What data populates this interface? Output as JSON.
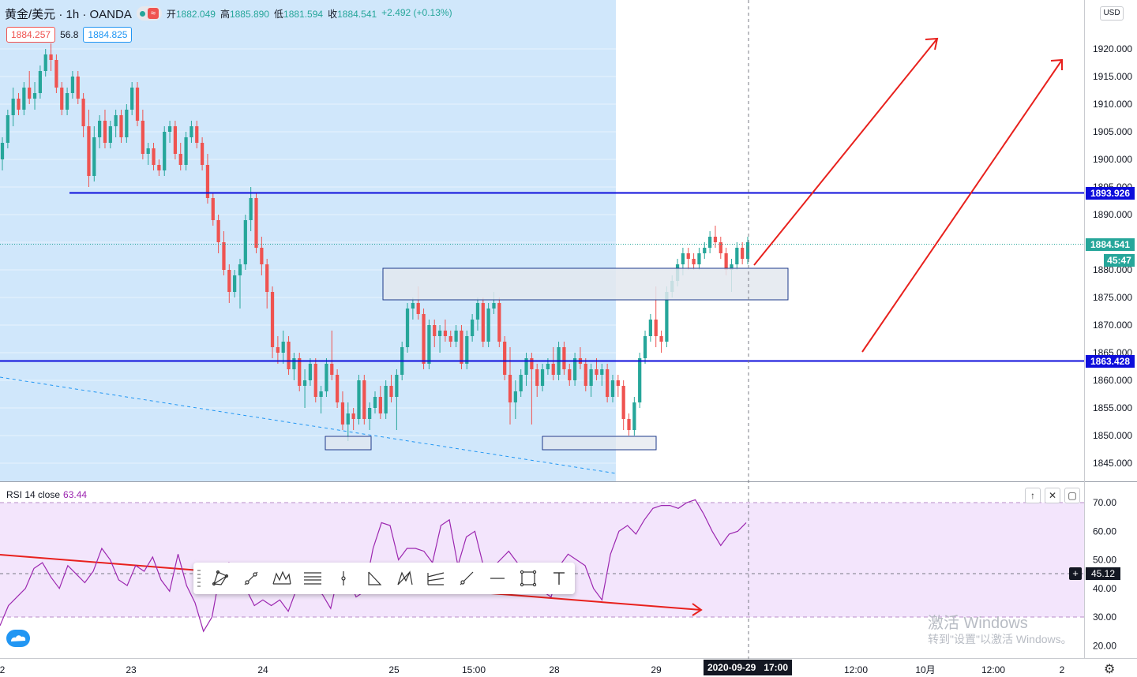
{
  "header": {
    "symbol": "黄金/美元 · 1h · OANDA",
    "wave_glyph": "≈",
    "ohlc": {
      "open_label": "开",
      "open": "1882.049",
      "high_label": "高",
      "high": "1885.890",
      "low_label": "低",
      "low": "1881.594",
      "close_label": "收",
      "close": "1884.541",
      "change": "+2.492 (+0.13%)"
    },
    "bid": "1884.257",
    "spread": "56.8",
    "ask": "1884.825"
  },
  "colors": {
    "up": "#26a69a",
    "down": "#ef5350",
    "level_line": "#0d0ddb",
    "shade": "#d0e7fb",
    "rsi_line": "#9c27b0",
    "rsi_band": "#f3e5fc",
    "arrow": "#e8211d",
    "zone_fill": "#e3e7ee",
    "zone_border": "#1e3a8a"
  },
  "price_axis": {
    "currency": "USD",
    "ticks": [
      "1920.000",
      "1915.000",
      "1910.000",
      "1905.000",
      "1900.000",
      "1895.000",
      "1890.000",
      "1885.000",
      "1880.000",
      "1875.000",
      "1870.000",
      "1865.000",
      "1860.000",
      "1855.000",
      "1850.000",
      "1845.000"
    ],
    "labels": [
      {
        "text": "1893.926",
        "color": "#0d0ddb"
      },
      {
        "text": "1884.541",
        "color": "#26a69a"
      },
      {
        "text": "45:47",
        "color": "#26a69a"
      },
      {
        "text": "1863.428",
        "color": "#0d0ddb"
      }
    ]
  },
  "time_axis": {
    "labels": [
      "2",
      "23",
      "24",
      "25",
      "15:00",
      "28",
      "29",
      "12:00",
      "10月",
      "12:00",
      "2"
    ],
    "crosshair_label": "2020-09-29   17:00"
  },
  "rsi": {
    "title": "RSI 14 close",
    "value": "63.44",
    "ticks": [
      "70.00",
      "60.00",
      "50.00",
      "40.00",
      "30.00",
      "20.00"
    ],
    "crosshair_value": "45.12",
    "crosshair_plus": "+",
    "buttons": [
      "↑",
      "✕",
      "▢"
    ]
  },
  "toolbar_icons": [
    "triangle-pattern-icon",
    "trend-line-icon",
    "elliott-wave-icon",
    "fib-levels-icon",
    "vertical-line-icon",
    "abcd-pattern-icon",
    "xabcd-pattern-icon",
    "pitchfork-icon",
    "ray-line-icon",
    "horizontal-ray-icon",
    "rectangle-icon",
    "text-icon"
  ],
  "watermark": {
    "line1": "激活 Windows",
    "line2": "转到\"设置\"以激活 Windows。"
  },
  "chart_data": {
    "type": "candlestick",
    "title": "黄金/美元 · 1h · OANDA",
    "ylim": [
      1841,
      1925
    ],
    "horizontal_levels": [
      1893.926,
      1863.428
    ],
    "current_price": 1884.541,
    "candles": [
      {
        "o": 1900,
        "h": 1904,
        "l": 1898,
        "c": 1903
      },
      {
        "o": 1903,
        "h": 1909,
        "l": 1902,
        "c": 1908
      },
      {
        "o": 1908,
        "h": 1913,
        "l": 1906,
        "c": 1911
      },
      {
        "o": 1911,
        "h": 1912,
        "l": 1908,
        "c": 1909
      },
      {
        "o": 1909,
        "h": 1914,
        "l": 1908,
        "c": 1913
      },
      {
        "o": 1913,
        "h": 1916,
        "l": 1910,
        "c": 1911
      },
      {
        "o": 1911,
        "h": 1914,
        "l": 1909,
        "c": 1912
      },
      {
        "o": 1912,
        "h": 1917,
        "l": 1911,
        "c": 1916
      },
      {
        "o": 1916,
        "h": 1920,
        "l": 1915,
        "c": 1919
      },
      {
        "o": 1919,
        "h": 1921,
        "l": 1916,
        "c": 1918
      },
      {
        "o": 1918,
        "h": 1919,
        "l": 1912,
        "c": 1913
      },
      {
        "o": 1913,
        "h": 1914,
        "l": 1908,
        "c": 1909
      },
      {
        "o": 1909,
        "h": 1913,
        "l": 1908,
        "c": 1912
      },
      {
        "o": 1912,
        "h": 1916,
        "l": 1911,
        "c": 1915
      },
      {
        "o": 1915,
        "h": 1916,
        "l": 1910,
        "c": 1911
      },
      {
        "o": 1911,
        "h": 1912,
        "l": 1904,
        "c": 1906
      },
      {
        "o": 1906,
        "h": 1909,
        "l": 1895,
        "c": 1897
      },
      {
        "o": 1897,
        "h": 1906,
        "l": 1896,
        "c": 1904
      },
      {
        "o": 1904,
        "h": 1908,
        "l": 1902,
        "c": 1907
      },
      {
        "o": 1907,
        "h": 1909,
        "l": 1902,
        "c": 1903
      },
      {
        "o": 1903,
        "h": 1907,
        "l": 1902,
        "c": 1906
      },
      {
        "o": 1906,
        "h": 1909,
        "l": 1904,
        "c": 1908
      },
      {
        "o": 1908,
        "h": 1909,
        "l": 1903,
        "c": 1904
      },
      {
        "o": 1904,
        "h": 1910,
        "l": 1903,
        "c": 1909
      },
      {
        "o": 1909,
        "h": 1914,
        "l": 1908,
        "c": 1913
      },
      {
        "o": 1913,
        "h": 1914,
        "l": 1906,
        "c": 1907
      },
      {
        "o": 1907,
        "h": 1909,
        "l": 1900,
        "c": 1901
      },
      {
        "o": 1901,
        "h": 1903,
        "l": 1899,
        "c": 1902
      },
      {
        "o": 1902,
        "h": 1903,
        "l": 1898,
        "c": 1899
      },
      {
        "o": 1899,
        "h": 1900,
        "l": 1897,
        "c": 1898
      },
      {
        "o": 1898,
        "h": 1906,
        "l": 1897,
        "c": 1905
      },
      {
        "o": 1905,
        "h": 1907,
        "l": 1903,
        "c": 1906
      },
      {
        "o": 1906,
        "h": 1907,
        "l": 1900,
        "c": 1901
      },
      {
        "o": 1901,
        "h": 1903,
        "l": 1898,
        "c": 1899
      },
      {
        "o": 1899,
        "h": 1905,
        "l": 1898,
        "c": 1904
      },
      {
        "o": 1904,
        "h": 1907,
        "l": 1903,
        "c": 1906
      },
      {
        "o": 1906,
        "h": 1907,
        "l": 1902,
        "c": 1903
      },
      {
        "o": 1903,
        "h": 1904,
        "l": 1898,
        "c": 1899
      },
      {
        "o": 1899,
        "h": 1901,
        "l": 1892,
        "c": 1893
      },
      {
        "o": 1893,
        "h": 1894,
        "l": 1888,
        "c": 1889
      },
      {
        "o": 1889,
        "h": 1890,
        "l": 1883,
        "c": 1885
      },
      {
        "o": 1885,
        "h": 1887,
        "l": 1879,
        "c": 1880
      },
      {
        "o": 1880,
        "h": 1881,
        "l": 1874,
        "c": 1876
      },
      {
        "o": 1876,
        "h": 1880,
        "l": 1875,
        "c": 1879
      },
      {
        "o": 1879,
        "h": 1882,
        "l": 1873,
        "c": 1881
      },
      {
        "o": 1881,
        "h": 1890,
        "l": 1880,
        "c": 1889
      },
      {
        "o": 1889,
        "h": 1895,
        "l": 1887,
        "c": 1893
      },
      {
        "o": 1893,
        "h": 1894,
        "l": 1883,
        "c": 1884
      },
      {
        "o": 1884,
        "h": 1886,
        "l": 1879,
        "c": 1881
      },
      {
        "o": 1881,
        "h": 1882,
        "l": 1873,
        "c": 1876
      },
      {
        "o": 1876,
        "h": 1877,
        "l": 1864,
        "c": 1866
      },
      {
        "o": 1866,
        "h": 1868,
        "l": 1863,
        "c": 1865
      },
      {
        "o": 1865,
        "h": 1869,
        "l": 1863,
        "c": 1867
      },
      {
        "o": 1867,
        "h": 1868,
        "l": 1861,
        "c": 1862
      },
      {
        "o": 1862,
        "h": 1865,
        "l": 1860,
        "c": 1864
      },
      {
        "o": 1864,
        "h": 1865,
        "l": 1858,
        "c": 1859
      },
      {
        "o": 1859,
        "h": 1862,
        "l": 1855,
        "c": 1860
      },
      {
        "o": 1860,
        "h": 1864,
        "l": 1859,
        "c": 1863
      },
      {
        "o": 1863,
        "h": 1864,
        "l": 1856,
        "c": 1857
      },
      {
        "o": 1857,
        "h": 1859,
        "l": 1854,
        "c": 1858
      },
      {
        "o": 1858,
        "h": 1864,
        "l": 1857,
        "c": 1863
      },
      {
        "o": 1863,
        "h": 1869,
        "l": 1860,
        "c": 1861
      },
      {
        "o": 1861,
        "h": 1862,
        "l": 1855,
        "c": 1856
      },
      {
        "o": 1856,
        "h": 1858,
        "l": 1851,
        "c": 1852
      },
      {
        "o": 1852,
        "h": 1856,
        "l": 1849,
        "c": 1854
      },
      {
        "o": 1854,
        "h": 1855,
        "l": 1851,
        "c": 1853
      },
      {
        "o": 1853,
        "h": 1861,
        "l": 1852,
        "c": 1860
      },
      {
        "o": 1860,
        "h": 1861,
        "l": 1852,
        "c": 1853
      },
      {
        "o": 1853,
        "h": 1856,
        "l": 1851,
        "c": 1855
      },
      {
        "o": 1855,
        "h": 1858,
        "l": 1854,
        "c": 1857
      },
      {
        "o": 1857,
        "h": 1859,
        "l": 1853,
        "c": 1854
      },
      {
        "o": 1854,
        "h": 1860,
        "l": 1853,
        "c": 1859
      },
      {
        "o": 1859,
        "h": 1861,
        "l": 1856,
        "c": 1857
      },
      {
        "o": 1857,
        "h": 1862,
        "l": 1851,
        "c": 1861
      },
      {
        "o": 1861,
        "h": 1867,
        "l": 1860,
        "c": 1866
      },
      {
        "o": 1866,
        "h": 1874,
        "l": 1865,
        "c": 1873
      },
      {
        "o": 1873,
        "h": 1875,
        "l": 1871,
        "c": 1874
      },
      {
        "o": 1874,
        "h": 1877,
        "l": 1871,
        "c": 1872
      },
      {
        "o": 1872,
        "h": 1873,
        "l": 1862,
        "c": 1863
      },
      {
        "o": 1863,
        "h": 1871,
        "l": 1862,
        "c": 1870
      },
      {
        "o": 1870,
        "h": 1871,
        "l": 1866,
        "c": 1868
      },
      {
        "o": 1868,
        "h": 1870,
        "l": 1865,
        "c": 1869
      },
      {
        "o": 1869,
        "h": 1871,
        "l": 1867,
        "c": 1868
      },
      {
        "o": 1868,
        "h": 1869,
        "l": 1866,
        "c": 1867
      },
      {
        "o": 1867,
        "h": 1870,
        "l": 1866,
        "c": 1869
      },
      {
        "o": 1869,
        "h": 1870,
        "l": 1862,
        "c": 1863
      },
      {
        "o": 1863,
        "h": 1869,
        "l": 1862,
        "c": 1868
      },
      {
        "o": 1868,
        "h": 1872,
        "l": 1867,
        "c": 1871
      },
      {
        "o": 1871,
        "h": 1875,
        "l": 1869,
        "c": 1874
      },
      {
        "o": 1874,
        "h": 1875,
        "l": 1866,
        "c": 1867
      },
      {
        "o": 1867,
        "h": 1874,
        "l": 1866,
        "c": 1873
      },
      {
        "o": 1873,
        "h": 1876,
        "l": 1872,
        "c": 1874
      },
      {
        "o": 1874,
        "h": 1875,
        "l": 1866,
        "c": 1867
      },
      {
        "o": 1867,
        "h": 1868,
        "l": 1860,
        "c": 1861
      },
      {
        "o": 1861,
        "h": 1866,
        "l": 1852,
        "c": 1856
      },
      {
        "o": 1856,
        "h": 1860,
        "l": 1853,
        "c": 1858
      },
      {
        "o": 1858,
        "h": 1862,
        "l": 1857,
        "c": 1861
      },
      {
        "o": 1861,
        "h": 1865,
        "l": 1859,
        "c": 1864
      },
      {
        "o": 1864,
        "h": 1865,
        "l": 1852,
        "c": 1862
      },
      {
        "o": 1862,
        "h": 1863,
        "l": 1857,
        "c": 1859
      },
      {
        "o": 1859,
        "h": 1863,
        "l": 1858,
        "c": 1862
      },
      {
        "o": 1862,
        "h": 1864,
        "l": 1861,
        "c": 1863
      },
      {
        "o": 1863,
        "h": 1866,
        "l": 1860,
        "c": 1861
      },
      {
        "o": 1861,
        "h": 1867,
        "l": 1860,
        "c": 1866
      },
      {
        "o": 1866,
        "h": 1867,
        "l": 1861,
        "c": 1862
      },
      {
        "o": 1862,
        "h": 1863,
        "l": 1859,
        "c": 1860
      },
      {
        "o": 1860,
        "h": 1865,
        "l": 1859,
        "c": 1864
      },
      {
        "o": 1864,
        "h": 1866,
        "l": 1862,
        "c": 1863
      },
      {
        "o": 1863,
        "h": 1864,
        "l": 1858,
        "c": 1859
      },
      {
        "o": 1859,
        "h": 1863,
        "l": 1857,
        "c": 1862
      },
      {
        "o": 1862,
        "h": 1864,
        "l": 1860,
        "c": 1861
      },
      {
        "o": 1861,
        "h": 1863,
        "l": 1859,
        "c": 1862
      },
      {
        "o": 1862,
        "h": 1863,
        "l": 1856,
        "c": 1857
      },
      {
        "o": 1857,
        "h": 1861,
        "l": 1856,
        "c": 1860
      },
      {
        "o": 1860,
        "h": 1861,
        "l": 1857,
        "c": 1859
      },
      {
        "o": 1859,
        "h": 1860,
        "l": 1851,
        "c": 1853
      },
      {
        "o": 1853,
        "h": 1854,
        "l": 1850,
        "c": 1851
      },
      {
        "o": 1851,
        "h": 1857,
        "l": 1850,
        "c": 1856
      },
      {
        "o": 1856,
        "h": 1865,
        "l": 1855,
        "c": 1864
      },
      {
        "o": 1864,
        "h": 1869,
        "l": 1863,
        "c": 1868
      },
      {
        "o": 1868,
        "h": 1872,
        "l": 1867,
        "c": 1871
      },
      {
        "o": 1871,
        "h": 1877,
        "l": 1866,
        "c": 1868
      },
      {
        "o": 1868,
        "h": 1869,
        "l": 1865,
        "c": 1867
      },
      {
        "o": 1867,
        "h": 1877,
        "l": 1866,
        "c": 1876
      },
      {
        "o": 1876,
        "h": 1879,
        "l": 1875,
        "c": 1878
      },
      {
        "o": 1878,
        "h": 1882,
        "l": 1877,
        "c": 1881
      },
      {
        "o": 1881,
        "h": 1884,
        "l": 1879,
        "c": 1883
      },
      {
        "o": 1883,
        "h": 1884,
        "l": 1880,
        "c": 1882
      },
      {
        "o": 1882,
        "h": 1883,
        "l": 1880,
        "c": 1881
      },
      {
        "o": 1881,
        "h": 1884,
        "l": 1880,
        "c": 1883
      },
      {
        "o": 1883,
        "h": 1885,
        "l": 1882,
        "c": 1884
      },
      {
        "o": 1884,
        "h": 1887,
        "l": 1883,
        "c": 1886
      },
      {
        "o": 1886,
        "h": 1888,
        "l": 1884,
        "c": 1885
      },
      {
        "o": 1885,
        "h": 1886,
        "l": 1882,
        "c": 1883
      },
      {
        "o": 1883,
        "h": 1884,
        "l": 1879,
        "c": 1880
      },
      {
        "o": 1880,
        "h": 1882,
        "l": 1876,
        "c": 1881
      },
      {
        "o": 1881,
        "h": 1885,
        "l": 1880,
        "c": 1884
      },
      {
        "o": 1884,
        "h": 1885,
        "l": 1881,
        "c": 1882
      },
      {
        "o": 1882,
        "h": 1886,
        "l": 1881,
        "c": 1885
      }
    ],
    "rsi_ylim": [
      18,
      72
    ],
    "rsi_values": [
      27,
      34,
      37,
      40,
      47,
      49,
      44,
      40,
      48,
      45,
      42,
      46,
      54,
      50,
      43,
      41,
      48,
      46,
      51,
      43,
      39,
      52,
      41,
      35,
      25,
      30,
      46,
      49,
      43,
      40,
      34,
      36,
      34,
      36,
      32,
      40,
      42,
      39,
      38,
      33,
      46,
      44,
      37,
      39,
      54,
      63,
      62,
      50,
      54,
      54,
      53,
      49,
      62,
      64,
      48,
      58,
      60,
      48,
      47,
      50,
      53,
      49,
      47,
      45,
      39,
      37,
      48,
      52,
      50,
      48,
      40,
      36,
      52,
      60,
      62,
      59,
      64,
      68,
      69,
      69,
      68,
      70,
      71,
      66,
      60,
      55,
      59,
      60,
      63
    ],
    "rsi_levels": [
      70,
      30
    ],
    "annotations": [
      {
        "type": "zone",
        "price_top": 1880.3,
        "price_bottom": 1874.6
      },
      {
        "type": "zone",
        "price_top": 1849.6,
        "price_bottom": 1847.8
      },
      {
        "type": "zone",
        "price_top": 1849.6,
        "price_bottom": 1847.2
      },
      {
        "type": "arrow",
        "direction": "up"
      },
      {
        "type": "arrow",
        "direction": "up"
      },
      {
        "type": "arrow",
        "direction": "down",
        "pane": "rsi"
      },
      {
        "type": "dashed_trend_line"
      }
    ]
  }
}
